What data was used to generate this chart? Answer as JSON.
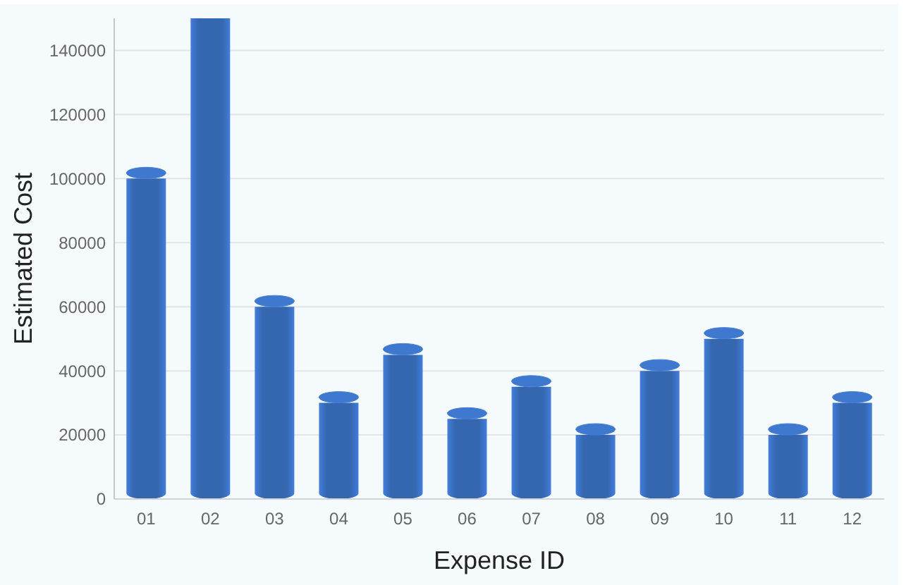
{
  "chart_data": {
    "type": "bar",
    "xlabel": "Expense ID",
    "ylabel": "Estimated Cost",
    "categories": [
      "01",
      "02",
      "03",
      "04",
      "05",
      "06",
      "07",
      "08",
      "09",
      "10",
      "11",
      "12"
    ],
    "values": [
      100000,
      150000,
      60000,
      30000,
      45000,
      25000,
      35000,
      20000,
      40000,
      50000,
      20000,
      30000
    ],
    "color": "#3566b0",
    "ylim": [
      0,
      150000
    ],
    "yticks": [
      0,
      20000,
      40000,
      60000,
      80000,
      100000,
      120000,
      140000
    ],
    "grid": "y"
  }
}
